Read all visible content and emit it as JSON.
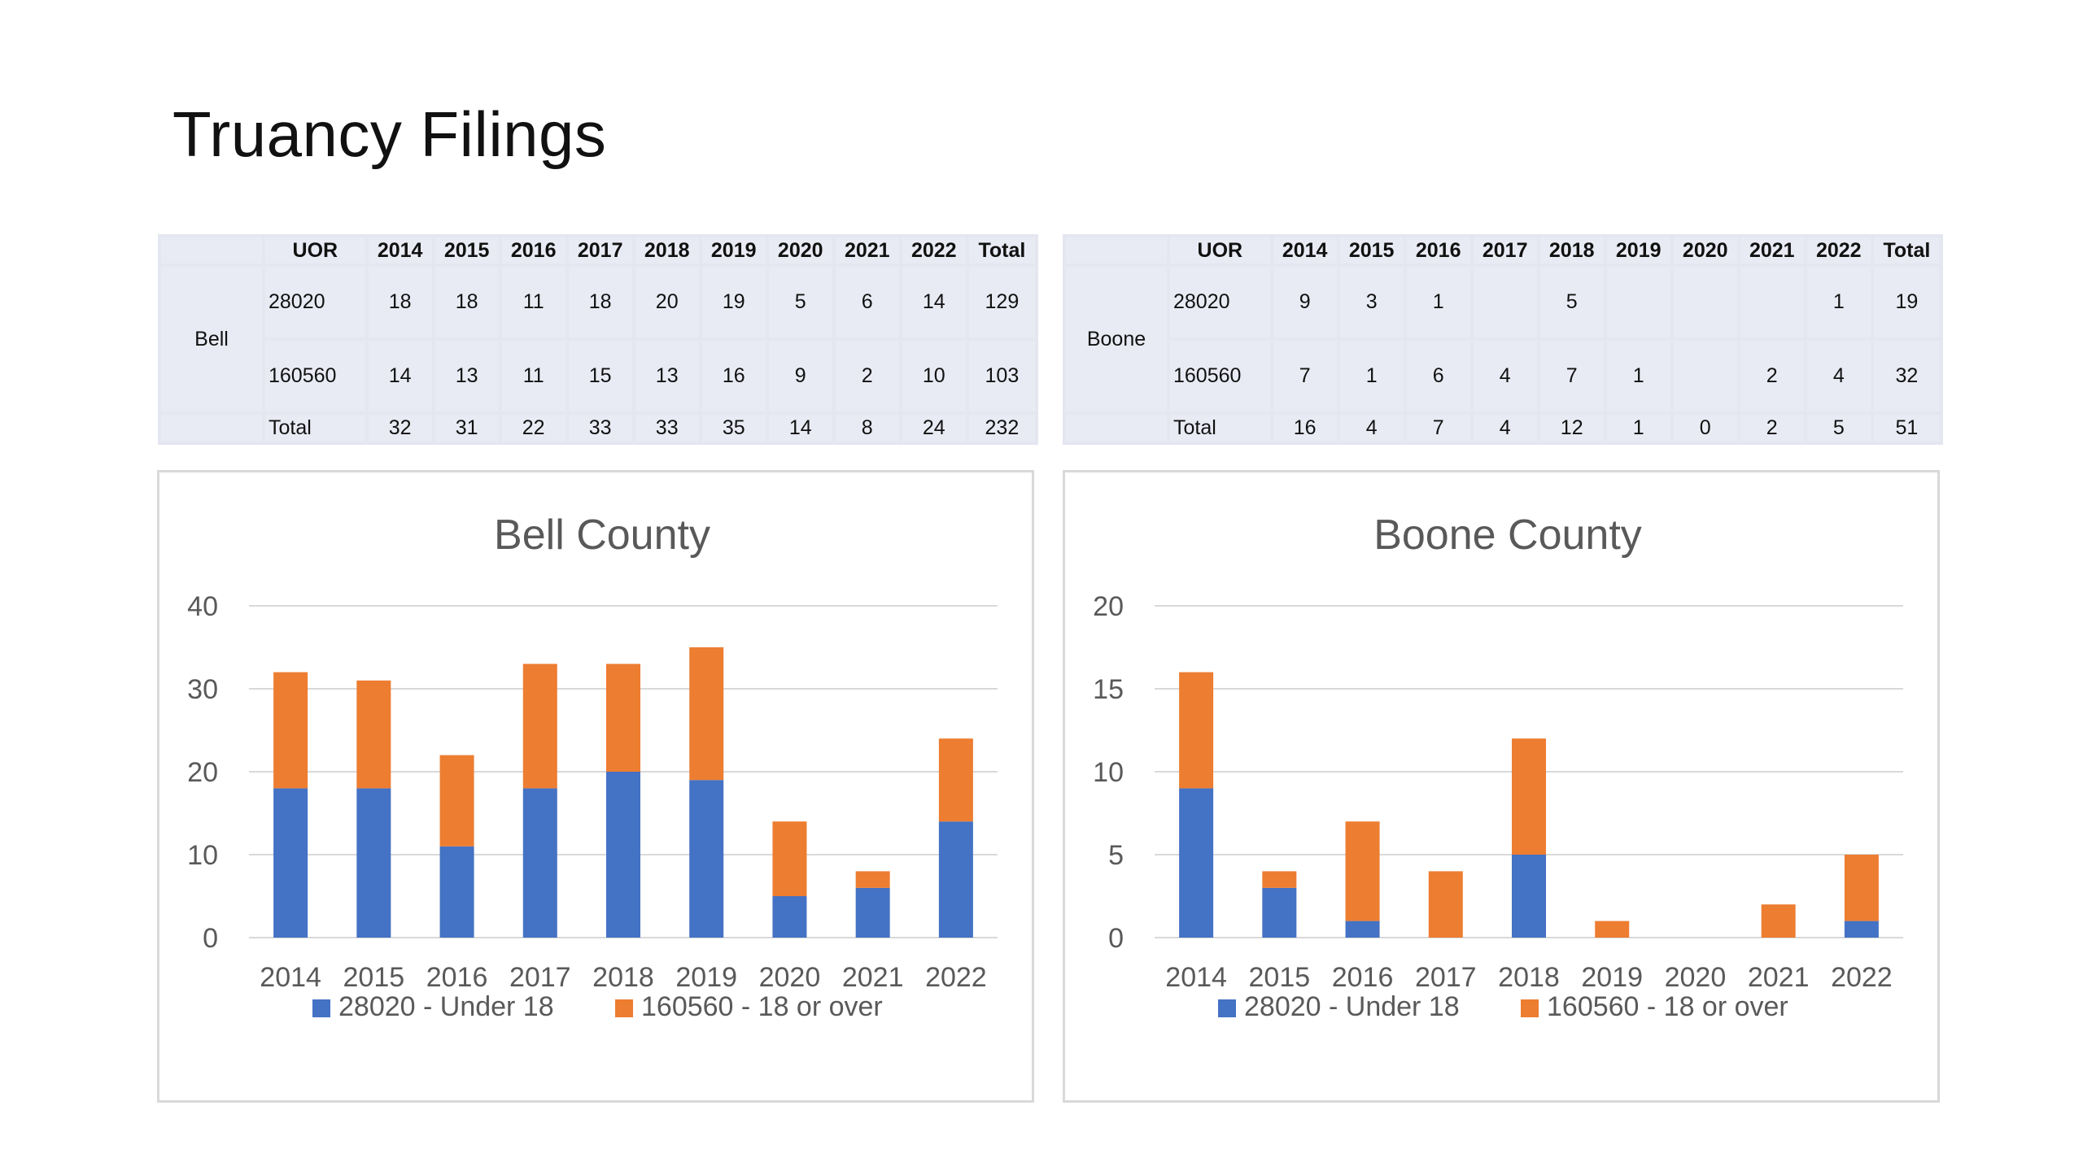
{
  "page_title": "Truancy Filings",
  "tables": [
    {
      "county": "Bell",
      "headers": [
        "UOR",
        "2014",
        "2015",
        "2016",
        "2017",
        "2018",
        "2019",
        "2020",
        "2021",
        "2022",
        "Total"
      ],
      "rows": [
        [
          "28020",
          "18",
          "18",
          "11",
          "18",
          "20",
          "19",
          "5",
          "6",
          "14",
          "129"
        ],
        [
          "160560",
          "14",
          "13",
          "11",
          "15",
          "13",
          "16",
          "9",
          "2",
          "10",
          "103"
        ],
        [
          "Total",
          "32",
          "31",
          "22",
          "33",
          "33",
          "35",
          "14",
          "8",
          "24",
          "232"
        ]
      ]
    },
    {
      "county": "Boone",
      "headers": [
        "UOR",
        "2014",
        "2015",
        "2016",
        "2017",
        "2018",
        "2019",
        "2020",
        "2021",
        "2022",
        "Total"
      ],
      "rows": [
        [
          "28020",
          "9",
          "3",
          "1",
          "",
          "5",
          "",
          "",
          "",
          "1",
          "19"
        ],
        [
          "160560",
          "7",
          "1",
          "6",
          "4",
          "7",
          "1",
          "",
          "2",
          "4",
          "32"
        ],
        [
          "Total",
          "16",
          "4",
          "7",
          "4",
          "12",
          "1",
          "0",
          "2",
          "5",
          "51"
        ]
      ]
    }
  ],
  "colors": {
    "series1": "#4472c4",
    "series2": "#ed7d31",
    "grid": "#d9d9d9",
    "axis_text": "#595959"
  },
  "chart_data": [
    {
      "type": "bar",
      "stacked": true,
      "title": "Bell County",
      "categories": [
        "2014",
        "2015",
        "2016",
        "2017",
        "2018",
        "2019",
        "2020",
        "2021",
        "2022"
      ],
      "series": [
        {
          "name": "28020 - Under 18",
          "values": [
            18,
            18,
            11,
            18,
            20,
            19,
            5,
            6,
            14
          ]
        },
        {
          "name": "160560 - 18 or over",
          "values": [
            14,
            13,
            11,
            15,
            13,
            16,
            9,
            2,
            10
          ]
        }
      ],
      "ylim": [
        0,
        40
      ],
      "yticks": [
        0,
        10,
        20,
        30,
        40
      ],
      "grid": true,
      "legend": "bottom"
    },
    {
      "type": "bar",
      "stacked": true,
      "title": "Boone County",
      "categories": [
        "2014",
        "2015",
        "2016",
        "2017",
        "2018",
        "2019",
        "2020",
        "2021",
        "2022"
      ],
      "series": [
        {
          "name": "28020 - Under 18",
          "values": [
            9,
            3,
            1,
            0,
            5,
            0,
            0,
            0,
            1
          ]
        },
        {
          "name": "160560 - 18 or over",
          "values": [
            7,
            1,
            6,
            4,
            7,
            1,
            0,
            2,
            4
          ]
        }
      ],
      "ylim": [
        0,
        20
      ],
      "yticks": [
        0,
        5,
        10,
        15,
        20
      ],
      "grid": true,
      "legend": "bottom"
    }
  ]
}
